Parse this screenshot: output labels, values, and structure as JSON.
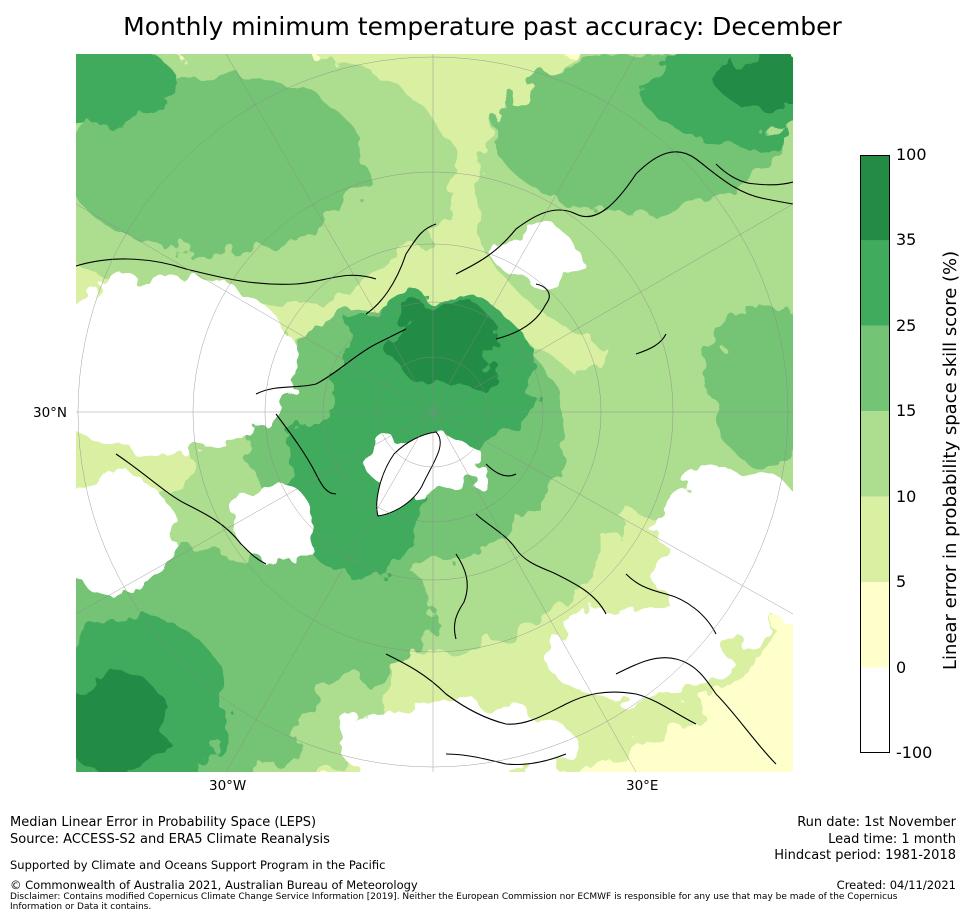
{
  "title": "Monthly minimum temperature past accuracy: December",
  "map": {
    "lon_labels": [
      "30°W",
      "30°E"
    ],
    "lat_label": "30°N",
    "icon": "polar-stereographic-map"
  },
  "colorbar": {
    "label": "Linear error in probability space skill score (%)",
    "ticks": [
      "100",
      "35",
      "25",
      "15",
      "10",
      "5",
      "0",
      "-100"
    ],
    "bins": [
      {
        "range": "35 to 100",
        "color": "#238b45"
      },
      {
        "range": "25 to 35",
        "color": "#41ab5d"
      },
      {
        "range": "15 to 25",
        "color": "#74c476"
      },
      {
        "range": "10 to 15",
        "color": "#addd8e"
      },
      {
        "range": "5 to 10",
        "color": "#d9f0a3"
      },
      {
        "range": "0 to 5",
        "color": "#ffffcc"
      },
      {
        "range": "-100 to 0",
        "color": "#ffffff"
      }
    ]
  },
  "footer": {
    "line1": "Median Linear Error in Probability Space (LEPS)",
    "line2": "Source: ACCESS-S2 and ERA5 Climate Reanalysis",
    "support": "Supported by Climate and Oceans Support Program in the Pacific",
    "copyright": "© Commonwealth of Australia 2021, Australian Bureau of Meteorology",
    "disclaimer": "Disclaimer: Contains modified Copernicus Climate Change Service Information [2019]. Neither the European Commission nor ECMWF is responsible for any use that may be made of the Copernicus Information or Data it contains.",
    "run_date": "Run date: 1st November",
    "lead_time": "Lead time: 1 month",
    "hindcast": "Hindcast period: 1981-2018",
    "created": "Created: 04/11/2021"
  }
}
